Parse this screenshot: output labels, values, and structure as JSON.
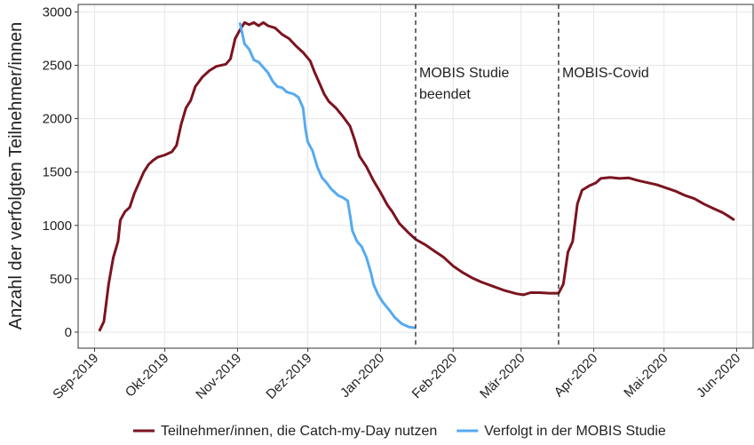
{
  "chart_data": {
    "type": "line",
    "ylabel": "Anzahl der verfolgten Teilnehmer/innen",
    "xlim": [
      -7,
      281
    ],
    "xticks": [
      {
        "value": 0,
        "label": "Sep-2019"
      },
      {
        "value": 30,
        "label": "Okt-2019"
      },
      {
        "value": 61,
        "label": "Nov-2019"
      },
      {
        "value": 91,
        "label": "Dez-2019"
      },
      {
        "value": 122,
        "label": "Jan-2020"
      },
      {
        "value": 153,
        "label": "Feb-2020"
      },
      {
        "value": 182,
        "label": "Mär-2020"
      },
      {
        "value": 213,
        "label": "Apr-2020"
      },
      {
        "value": 243,
        "label": "Mai-2020"
      },
      {
        "value": 274,
        "label": "Jun-2020"
      }
    ],
    "ylim": [
      -150,
      3070
    ],
    "yticks": [
      0,
      500,
      1000,
      1500,
      2000,
      2500,
      3000
    ],
    "grid": true,
    "legend": "bottom",
    "annotations": [
      {
        "x": 137,
        "lines": [
          "MOBIS Studie",
          "beendet"
        ]
      },
      {
        "x": 198,
        "lines": [
          "MOBIS-Covid"
        ]
      }
    ],
    "series": [
      {
        "name": "Teilnehmer/innen, die Catch-my-Day nutzen",
        "color": "#7b1420",
        "x": [
          2,
          4,
          6,
          8,
          10,
          11,
          13,
          15,
          17,
          19,
          21,
          23,
          25,
          27,
          30,
          33,
          35,
          37,
          39,
          41,
          43,
          46,
          49,
          52,
          56,
          58,
          60,
          62,
          64,
          66,
          68,
          70,
          72,
          74,
          77,
          80,
          83,
          86,
          89,
          92,
          94,
          96,
          98,
          100,
          103,
          106,
          109,
          111,
          113,
          116,
          119,
          122,
          125,
          127,
          130,
          134,
          137,
          141,
          145,
          149,
          153,
          157,
          161,
          165,
          170,
          175,
          180,
          183,
          186,
          190,
          194,
          198,
          200,
          202,
          204,
          206,
          208,
          211,
          214,
          216,
          220,
          224,
          228,
          232,
          236,
          240,
          244,
          248,
          252,
          256,
          260,
          264,
          268,
          271,
          273
        ],
        "values": [
          10,
          100,
          450,
          700,
          850,
          1050,
          1130,
          1170,
          1300,
          1400,
          1500,
          1570,
          1610,
          1640,
          1660,
          1690,
          1750,
          1950,
          2100,
          2170,
          2300,
          2390,
          2450,
          2490,
          2510,
          2560,
          2750,
          2830,
          2900,
          2880,
          2900,
          2870,
          2900,
          2870,
          2850,
          2790,
          2750,
          2680,
          2620,
          2540,
          2430,
          2330,
          2230,
          2160,
          2100,
          2020,
          1930,
          1800,
          1650,
          1550,
          1420,
          1310,
          1190,
          1130,
          1020,
          930,
          870,
          820,
          760,
          700,
          620,
          560,
          510,
          470,
          430,
          390,
          360,
          350,
          370,
          370,
          365,
          365,
          450,
          750,
          850,
          1200,
          1330,
          1370,
          1400,
          1440,
          1450,
          1440,
          1445,
          1420,
          1400,
          1380,
          1350,
          1320,
          1280,
          1250,
          1200,
          1160,
          1120,
          1080,
          1050
        ]
      },
      {
        "name": "Verfolgt in der MOBIS Studie",
        "color": "#56aaf0",
        "x": [
          62,
          64,
          66,
          68,
          70,
          72,
          74,
          76,
          78,
          80,
          82,
          85,
          87,
          89,
          90,
          91,
          93,
          95,
          97,
          99,
          101,
          104,
          106,
          108,
          109,
          110,
          112,
          114,
          116,
          118,
          119,
          121,
          123,
          126,
          128,
          131,
          134,
          137
        ],
        "values": [
          2900,
          2700,
          2650,
          2550,
          2530,
          2480,
          2430,
          2350,
          2300,
          2290,
          2250,
          2230,
          2200,
          2100,
          1900,
          1780,
          1700,
          1550,
          1450,
          1400,
          1340,
          1280,
          1260,
          1230,
          1100,
          950,
          850,
          800,
          700,
          550,
          450,
          350,
          280,
          200,
          140,
          80,
          50,
          40
        ]
      }
    ]
  }
}
